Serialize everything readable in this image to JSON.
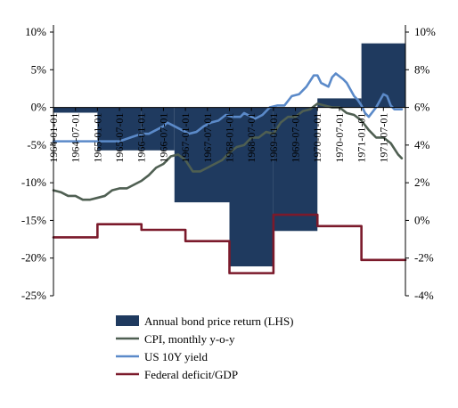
{
  "chart_data": {
    "type": "bar+line",
    "title": "",
    "left_axis": {
      "min": -25,
      "max": 10,
      "ticks": [
        -25,
        -20,
        -15,
        -10,
        -5,
        0,
        5,
        10
      ],
      "tick_labels": [
        "-25%",
        "-20%",
        "-15%",
        "-10%",
        "-5%",
        "0%",
        "5%",
        "10%"
      ]
    },
    "right_axis": {
      "min": -4,
      "max": 10,
      "ticks": [
        -4,
        -2,
        0,
        2,
        4,
        6,
        8,
        10
      ],
      "tick_labels": [
        "-4%",
        "-2%",
        "0%",
        "2%",
        "4%",
        "6%",
        "8%",
        "10%"
      ]
    },
    "x_axis": {
      "start": "1964-01-01",
      "end": "1971-12-01",
      "tick_labels": [
        "1964-01-01",
        "1964-07-01",
        "1965-01-01",
        "1965-07-01",
        "1966-01-01",
        "1966-07-01",
        "1967-01-01",
        "1967-07-01",
        "1968-01-01",
        "1968-07-01",
        "1969-01-01",
        "1969-07-01",
        "1970-01-01",
        "1970-07-01",
        "1971-01-01",
        "1971-07-01"
      ]
    },
    "series": [
      {
        "name": "Annual bond price return (LHS)",
        "type": "step-area",
        "axis": "left",
        "color": "#1f3a5f",
        "points": [
          [
            "1964-01-01",
            -0.7
          ],
          [
            "1965-01-01",
            -5.7
          ],
          [
            "1966-01-01",
            -5.7
          ],
          [
            "1966-10-01",
            -12.6
          ],
          [
            "1968-01-01",
            -21.1
          ],
          [
            "1969-01-01",
            -16.4
          ],
          [
            "1970-01-01",
            1.2
          ],
          [
            "1971-01-01",
            8.5
          ],
          [
            "1971-12-01",
            8.5
          ]
        ]
      },
      {
        "name": "CPI, monthly y-o-y",
        "type": "line",
        "axis": "right",
        "color": "#4f5f52",
        "points": [
          [
            "1964-01-01",
            1.6
          ],
          [
            "1964-03-01",
            1.5
          ],
          [
            "1964-05-01",
            1.3
          ],
          [
            "1964-07-01",
            1.3
          ],
          [
            "1964-09-01",
            1.1
          ],
          [
            "1964-11-01",
            1.1
          ],
          [
            "1965-01-01",
            1.2
          ],
          [
            "1965-03-01",
            1.3
          ],
          [
            "1965-05-01",
            1.6
          ],
          [
            "1965-07-01",
            1.7
          ],
          [
            "1965-09-01",
            1.7
          ],
          [
            "1965-11-01",
            1.9
          ],
          [
            "1966-01-01",
            2.1
          ],
          [
            "1966-03-01",
            2.4
          ],
          [
            "1966-05-01",
            2.8
          ],
          [
            "1966-07-01",
            3.0
          ],
          [
            "1966-09-01",
            3.4
          ],
          [
            "1966-11-01",
            3.5
          ],
          [
            "1967-01-01",
            3.2
          ],
          [
            "1967-03-01",
            2.6
          ],
          [
            "1967-05-01",
            2.6
          ],
          [
            "1967-07-01",
            2.8
          ],
          [
            "1967-09-01",
            3.0
          ],
          [
            "1967-11-01",
            3.2
          ],
          [
            "1968-01-01",
            3.6
          ],
          [
            "1968-03-01",
            3.9
          ],
          [
            "1968-05-01",
            4.0
          ],
          [
            "1968-07-01",
            4.4
          ],
          [
            "1968-09-01",
            4.4
          ],
          [
            "1968-11-01",
            4.7
          ],
          [
            "1969-01-01",
            4.6
          ],
          [
            "1969-03-01",
            5.2
          ],
          [
            "1969-05-01",
            5.5
          ],
          [
            "1969-07-01",
            5.5
          ],
          [
            "1969-09-01",
            5.8
          ],
          [
            "1969-11-01",
            5.9
          ],
          [
            "1970-01-01",
            6.2
          ],
          [
            "1970-03-01",
            6.1
          ],
          [
            "1970-05-01",
            6.0
          ],
          [
            "1970-07-01",
            6.0
          ],
          [
            "1970-09-01",
            5.7
          ],
          [
            "1970-11-01",
            5.6
          ],
          [
            "1971-01-01",
            5.3
          ],
          [
            "1971-03-01",
            4.8
          ],
          [
            "1971-05-01",
            4.4
          ],
          [
            "1971-07-01",
            4.4
          ],
          [
            "1971-09-01",
            4.1
          ],
          [
            "1971-11-01",
            3.5
          ],
          [
            "1971-12-01",
            3.3
          ]
        ]
      },
      {
        "name": "US 10Y yield",
        "type": "line",
        "axis": "right",
        "color": "#5b8ac9",
        "points": [
          [
            "1964-01-01",
            4.2
          ],
          [
            "1964-04-01",
            4.2
          ],
          [
            "1964-07-01",
            4.2
          ],
          [
            "1964-10-01",
            4.2
          ],
          [
            "1965-01-01",
            4.2
          ],
          [
            "1965-04-01",
            4.2
          ],
          [
            "1965-07-01",
            4.2
          ],
          [
            "1965-10-01",
            4.4
          ],
          [
            "1966-01-01",
            4.6
          ],
          [
            "1966-03-01",
            4.6
          ],
          [
            "1966-05-01",
            4.8
          ],
          [
            "1966-07-01",
            5.0
          ],
          [
            "1966-08-01",
            5.2
          ],
          [
            "1966-10-01",
            5.0
          ],
          [
            "1966-12-01",
            4.8
          ],
          [
            "1967-02-01",
            4.6
          ],
          [
            "1967-04-01",
            4.7
          ],
          [
            "1967-06-01",
            5.0
          ],
          [
            "1967-08-01",
            5.2
          ],
          [
            "1967-10-01",
            5.3
          ],
          [
            "1967-12-01",
            5.6
          ],
          [
            "1968-02-01",
            5.5
          ],
          [
            "1968-04-01",
            5.5
          ],
          [
            "1968-05-01",
            5.7
          ],
          [
            "1968-07-01",
            5.5
          ],
          [
            "1968-08-01",
            5.4
          ],
          [
            "1968-10-01",
            5.6
          ],
          [
            "1968-12-01",
            6.0
          ],
          [
            "1969-02-01",
            6.1
          ],
          [
            "1969-04-01",
            6.1
          ],
          [
            "1969-06-01",
            6.6
          ],
          [
            "1969-08-01",
            6.7
          ],
          [
            "1969-10-01",
            7.1
          ],
          [
            "1969-12-01",
            7.7
          ],
          [
            "1970-01-01",
            7.7
          ],
          [
            "1970-02-01",
            7.3
          ],
          [
            "1970-04-01",
            7.1
          ],
          [
            "1970-05-01",
            7.6
          ],
          [
            "1970-06-01",
            7.8
          ],
          [
            "1970-08-01",
            7.5
          ],
          [
            "1970-09-01",
            7.3
          ],
          [
            "1970-11-01",
            6.6
          ],
          [
            "1970-12-01",
            6.4
          ],
          [
            "1971-01-01",
            6.1
          ],
          [
            "1971-02-01",
            5.7
          ],
          [
            "1971-03-01",
            5.5
          ],
          [
            "1971-05-01",
            6.0
          ],
          [
            "1971-07-01",
            6.7
          ],
          [
            "1971-08-01",
            6.6
          ],
          [
            "1971-09-01",
            6.1
          ],
          [
            "1971-10-01",
            5.9
          ],
          [
            "1971-12-01",
            5.9
          ]
        ]
      },
      {
        "name": "Federal deficit/GDP",
        "type": "step-line",
        "axis": "right",
        "color": "#7b1a2b",
        "points": [
          [
            "1964-01-01",
            -0.9
          ],
          [
            "1965-01-01",
            -0.2
          ],
          [
            "1966-01-01",
            -0.5
          ],
          [
            "1967-01-01",
            -1.1
          ],
          [
            "1968-01-01",
            -2.8
          ],
          [
            "1969-01-01",
            0.3
          ],
          [
            "1970-01-01",
            -0.3
          ],
          [
            "1971-01-01",
            -2.1
          ],
          [
            "1971-12-01",
            -2.1
          ]
        ]
      }
    ],
    "legend": {
      "placement": "bottom",
      "entries": [
        {
          "label": "Annual bond price return (LHS)",
          "symbol": "rect"
        },
        {
          "label": "CPI, monthly y-o-y",
          "symbol": "line"
        },
        {
          "label": "US 10Y yield",
          "symbol": "line"
        },
        {
          "label": "Federal deficit/GDP",
          "symbol": "line"
        }
      ]
    }
  }
}
